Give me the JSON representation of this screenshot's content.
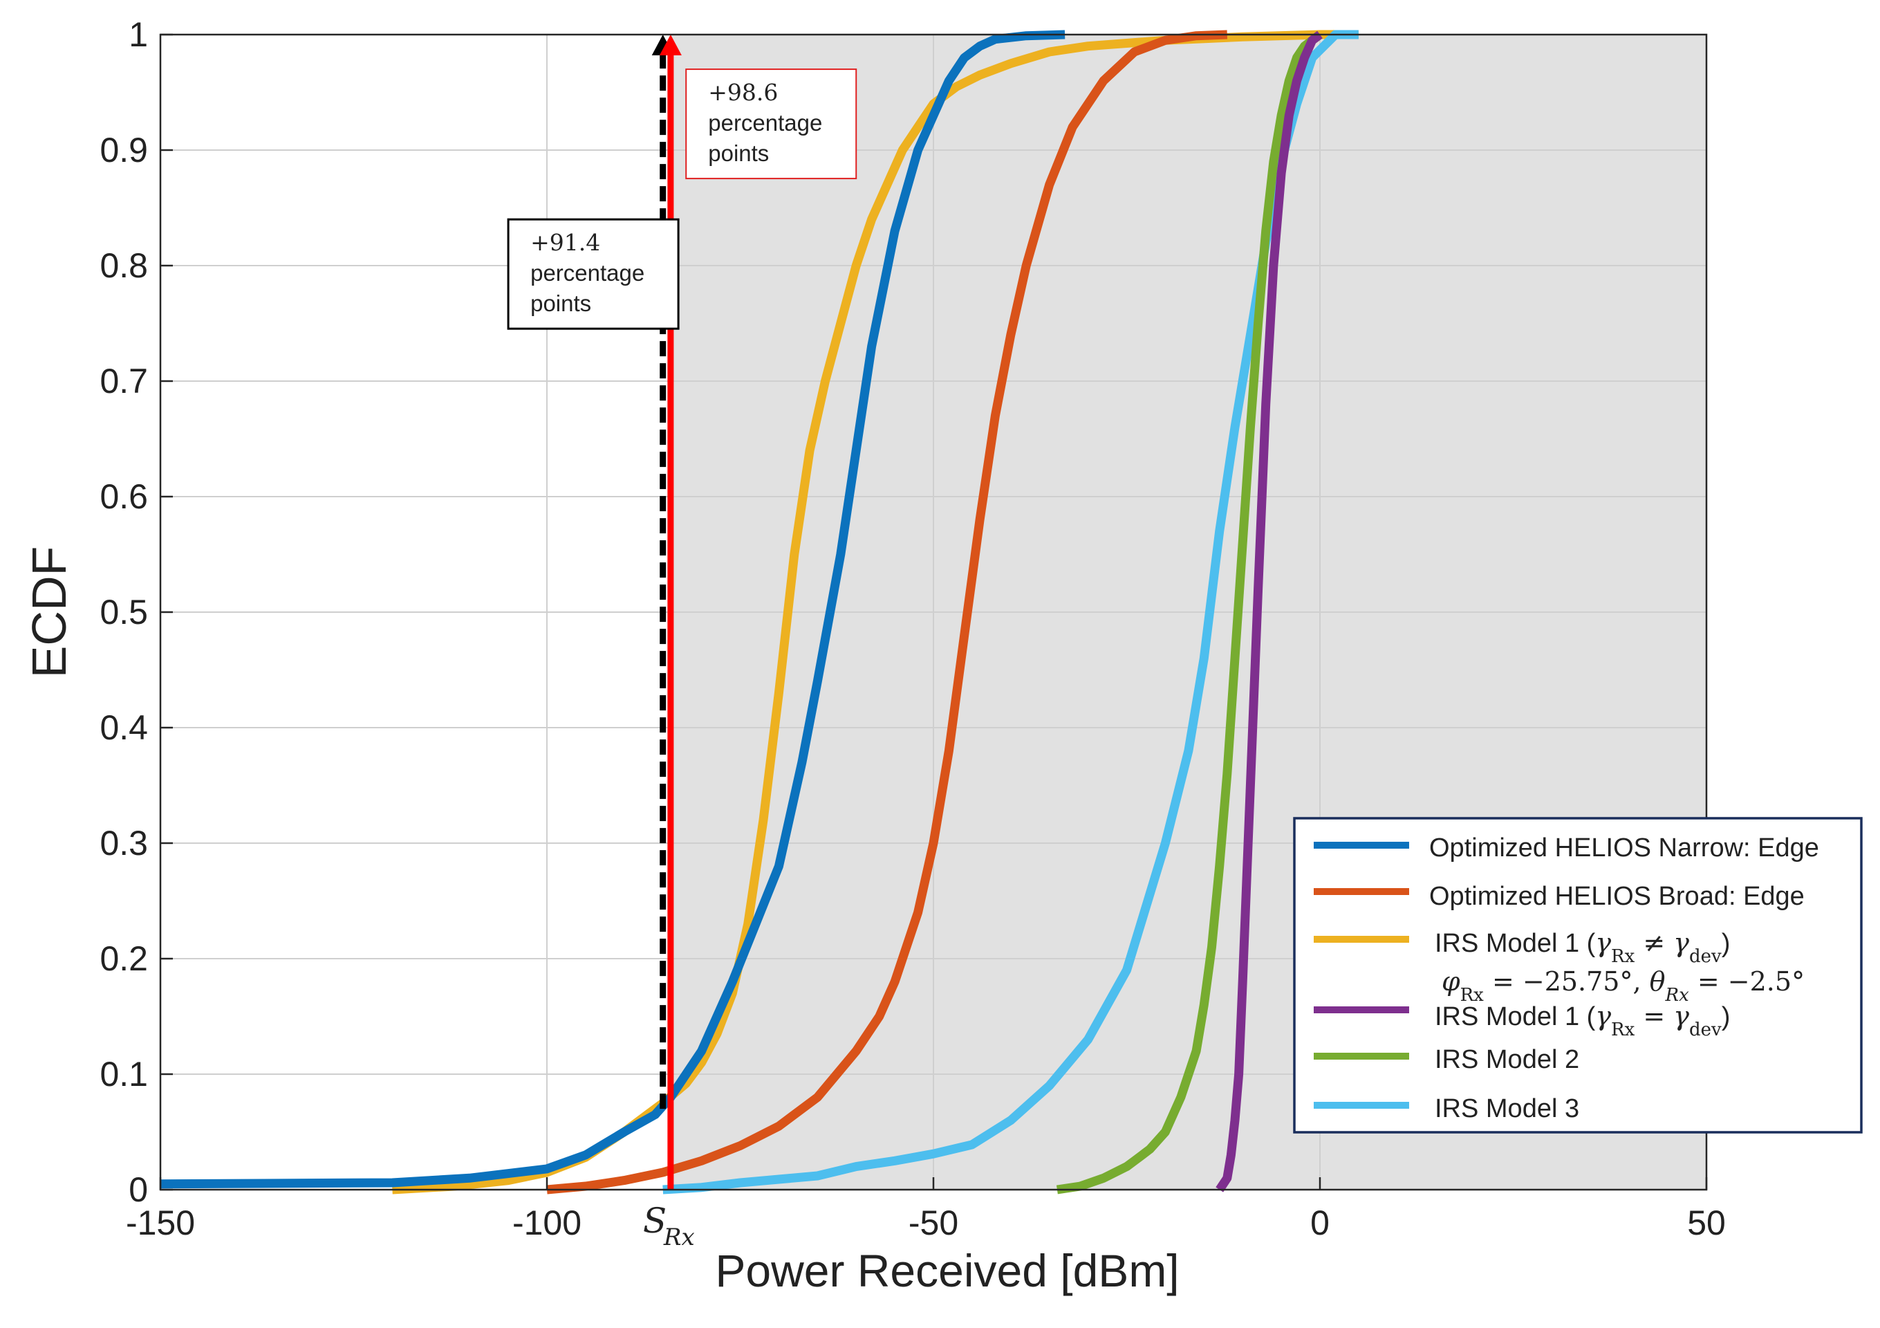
{
  "chart_data": {
    "type": "line",
    "xlabel": "Power Received [dBm]",
    "ylabel": "ECDF",
    "xlim": [
      -150,
      50
    ],
    "ylim": [
      0,
      1
    ],
    "xticks": [
      -150,
      -100,
      -50,
      0,
      50
    ],
    "yticks": [
      0,
      0.1,
      0.2,
      0.3,
      0.4,
      0.5,
      0.6,
      0.7,
      0.8,
      0.9,
      1
    ],
    "xtick_labels": [
      "-150",
      "-100",
      "-50",
      "0",
      "50"
    ],
    "ytick_labels": [
      "0",
      "0.1",
      "0.2",
      "0.3",
      "0.4",
      "0.5",
      "0.6",
      "0.7",
      "0.8",
      "0.9",
      "1"
    ],
    "grid": true,
    "legend_position": "bottom-right",
    "shaded_region": {
      "x_from": -84,
      "x_to": 50,
      "color": "#e1e1e1"
    },
    "threshold": {
      "label": "S",
      "subscript": "Rx",
      "x": -84
    },
    "arrows": [
      {
        "x": -85,
        "from_y": 0.07,
        "to_y": 1.0,
        "color": "#000000",
        "style": "dashed"
      },
      {
        "x": -84,
        "from_y": 0.0,
        "to_y": 1.0,
        "color": "#ff0000",
        "style": "solid"
      }
    ],
    "annotations": [
      {
        "name": "annotation-black",
        "lines": [
          "+91.4",
          "percentage",
          "points"
        ],
        "border": "#000000",
        "anchor_x": -105,
        "anchor_y": 0.84
      },
      {
        "name": "annotation-red",
        "lines": [
          "+98.6",
          "percentage",
          "points"
        ],
        "border": "#e02020",
        "anchor_x": -82,
        "anchor_y": 0.97
      }
    ],
    "series": [
      {
        "name": "Optimized HELIOS Narrow: Edge",
        "color": "#0b72bd",
        "x": [
          -150,
          -120,
          -110,
          -100,
          -95,
          -90,
          -86,
          -84,
          -82,
          -80,
          -76,
          -73,
          -70,
          -67,
          -65,
          -62,
          -60,
          -58,
          -55,
          -52,
          -50,
          -48,
          -46,
          -44,
          -42,
          -38,
          -33
        ],
        "y": [
          0.005,
          0.006,
          0.01,
          0.018,
          0.03,
          0.05,
          0.065,
          0.08,
          0.1,
          0.12,
          0.18,
          0.23,
          0.28,
          0.37,
          0.44,
          0.55,
          0.64,
          0.73,
          0.83,
          0.9,
          0.93,
          0.96,
          0.98,
          0.99,
          0.996,
          0.999,
          1.0
        ]
      },
      {
        "name": "Optimized HELIOS Broad: Edge",
        "color": "#d95319",
        "x": [
          -100,
          -95,
          -90,
          -85,
          -80,
          -75,
          -70,
          -65,
          -60,
          -57,
          -55,
          -52,
          -50,
          -48,
          -46,
          -44,
          -42,
          -40,
          -38,
          -35,
          -32,
          -28,
          -24,
          -20,
          -16,
          -12
        ],
        "y": [
          0.0,
          0.003,
          0.008,
          0.015,
          0.025,
          0.038,
          0.055,
          0.08,
          0.12,
          0.15,
          0.18,
          0.24,
          0.3,
          0.38,
          0.48,
          0.58,
          0.67,
          0.74,
          0.8,
          0.87,
          0.92,
          0.96,
          0.985,
          0.995,
          0.999,
          1.0
        ]
      },
      {
        "name": "IRS Model 1 (γRx ≠ γdev) φRx = −25.75°, θRx = −2.5°",
        "legend_lines": [
          "IRS Model 1 (γ",
          "φ",
          "Rx",
          " = −25.75°, θ",
          "Rx",
          " = −2.5°"
        ],
        "color": "#edb120",
        "x": [
          -120,
          -112,
          -105,
          -100,
          -95,
          -90,
          -87,
          -85,
          -82,
          -80,
          -78,
          -76,
          -74,
          -72,
          -70,
          -68,
          -66,
          -64,
          -62,
          -60,
          -58,
          -56,
          -54,
          -52,
          -50,
          -47,
          -44,
          -40,
          -35,
          -30,
          -20,
          -10,
          0,
          5
        ],
        "y": [
          0.0,
          0.003,
          0.008,
          0.015,
          0.028,
          0.05,
          0.065,
          0.075,
          0.092,
          0.11,
          0.135,
          0.17,
          0.23,
          0.32,
          0.43,
          0.55,
          0.64,
          0.7,
          0.75,
          0.8,
          0.84,
          0.87,
          0.9,
          0.92,
          0.94,
          0.955,
          0.965,
          0.975,
          0.985,
          0.99,
          0.995,
          0.998,
          1.0,
          1.0
        ]
      },
      {
        "name": "IRS Model 1 (γRx = γdev)",
        "color": "#7e2f8e",
        "x": [
          -13,
          -12,
          -11.5,
          -11,
          -10.5,
          -10,
          -9,
          -8,
          -7,
          -6,
          -5,
          -4,
          -3,
          -2,
          -1,
          0
        ],
        "y": [
          0.0,
          0.01,
          0.03,
          0.06,
          0.1,
          0.18,
          0.35,
          0.52,
          0.68,
          0.8,
          0.88,
          0.93,
          0.96,
          0.98,
          0.995,
          1.0
        ]
      },
      {
        "name": "IRS Model 2",
        "color": "#77ac30",
        "x": [
          -34,
          -31,
          -28,
          -25,
          -24,
          -23,
          -22,
          -20,
          -18,
          -16,
          -15,
          -14,
          -13,
          -12,
          -11,
          -10,
          -9,
          -8,
          -7,
          -6,
          -5,
          -4,
          -3,
          -2,
          0
        ],
        "y": [
          0.0,
          0.003,
          0.01,
          0.02,
          0.025,
          0.03,
          0.035,
          0.05,
          0.08,
          0.12,
          0.16,
          0.21,
          0.28,
          0.36,
          0.46,
          0.56,
          0.66,
          0.75,
          0.83,
          0.89,
          0.93,
          0.96,
          0.98,
          0.99,
          1.0
        ]
      },
      {
        "name": "IRS Model 3",
        "color": "#4dbeee",
        "x": [
          -85,
          -80,
          -75,
          -70,
          -65,
          -60,
          -55,
          -50,
          -45,
          -40,
          -35,
          -30,
          -25,
          -20,
          -17,
          -15,
          -13,
          -11,
          -9,
          -7,
          -5,
          -3,
          -1,
          2,
          5
        ],
        "y": [
          0.0,
          0.002,
          0.006,
          0.009,
          0.012,
          0.02,
          0.025,
          0.031,
          0.039,
          0.06,
          0.09,
          0.13,
          0.19,
          0.3,
          0.38,
          0.46,
          0.57,
          0.66,
          0.74,
          0.82,
          0.89,
          0.94,
          0.98,
          1.0,
          1.0
        ]
      }
    ]
  }
}
